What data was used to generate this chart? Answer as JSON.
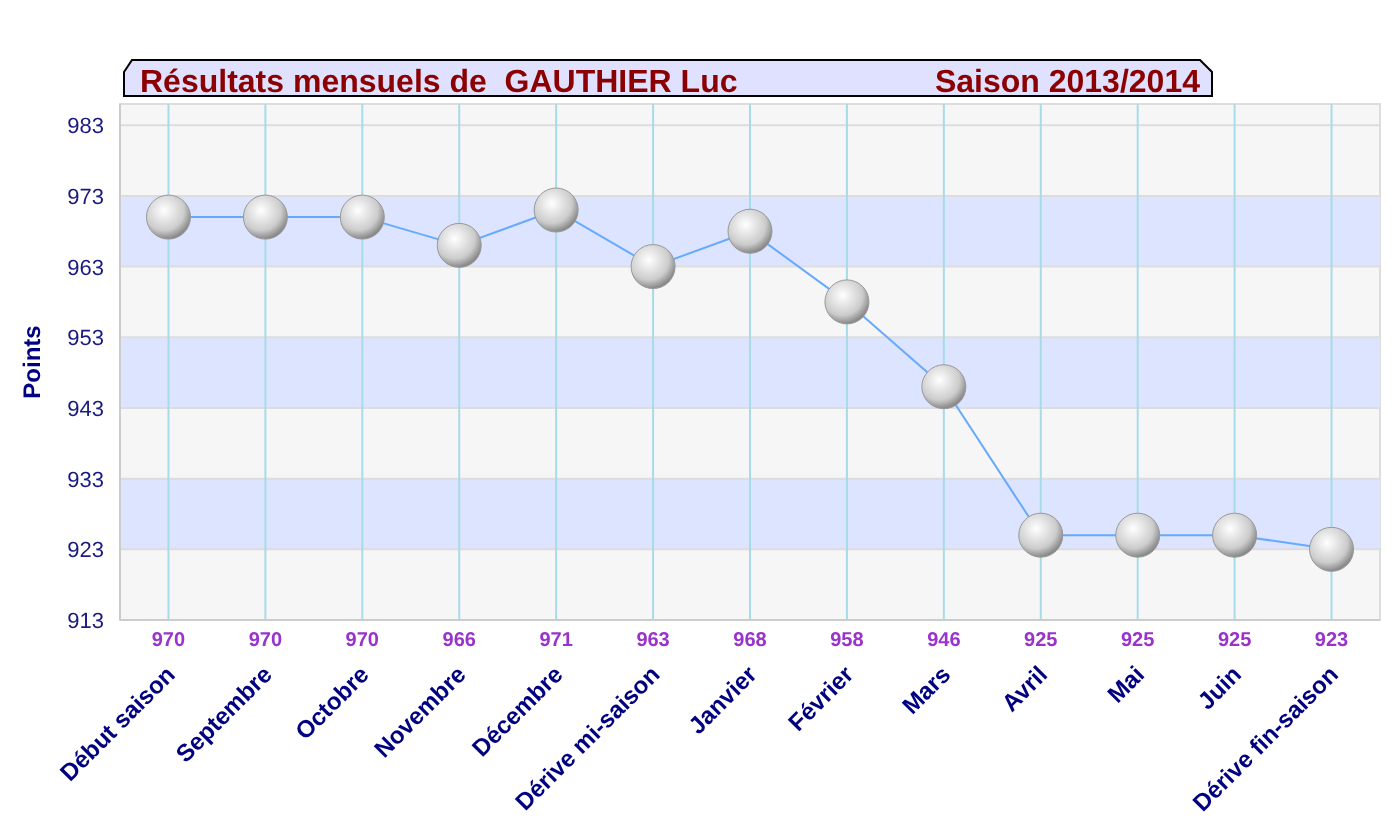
{
  "chart_data": {
    "type": "line",
    "title": "Résultats mensuels de  GAUTHIER Luc",
    "subtitle": "Saison 2013/2014",
    "ylabel": "Points",
    "categories": [
      "Début saison",
      "Septembre",
      "Octobre",
      "Novembre",
      "Décembre",
      "Dérive mi-saison",
      "Janvier",
      "Février",
      "Mars",
      "Avril",
      "Mai",
      "Juin",
      "Dérive fin-saison"
    ],
    "series": [
      {
        "color": "#66aaff",
        "values": [
          970,
          970,
          970,
          966,
          971,
          963,
          968,
          958,
          946,
          925,
          925,
          925,
          923
        ]
      }
    ],
    "ylim": [
      913,
      986
    ],
    "yticks": [
      913,
      923,
      933,
      943,
      953,
      963,
      973,
      983
    ],
    "grid": true,
    "marker": "circle",
    "line_style": "solid",
    "data_labels": true
  }
}
